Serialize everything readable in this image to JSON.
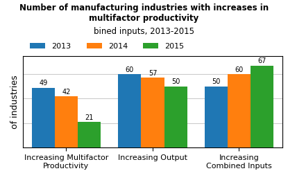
{
  "chart_data": {
    "type": "bar",
    "title": "Number of manufacturing industries with increases in multifactor productivity",
    "subtitle": "bined inputs, 2013-2015",
    "ylabel": "of industries",
    "categories": [
      "Increasing Multifactor\nProductivity",
      "Increasing Output",
      "Increasing Combined Inputs"
    ],
    "series": [
      {
        "name": "2013",
        "values": [
          49,
          60,
          50
        ]
      },
      {
        "name": "2014",
        "values": [
          42,
          57,
          60
        ]
      },
      {
        "name": "2015",
        "values": [
          21,
          50,
          67
        ]
      }
    ],
    "ylim": [
      0,
      75
    ],
    "yticks": [
      20,
      40,
      60
    ],
    "grid": true,
    "tick_labels": "x",
    "data_labels": true,
    "legend": "upper left"
  }
}
